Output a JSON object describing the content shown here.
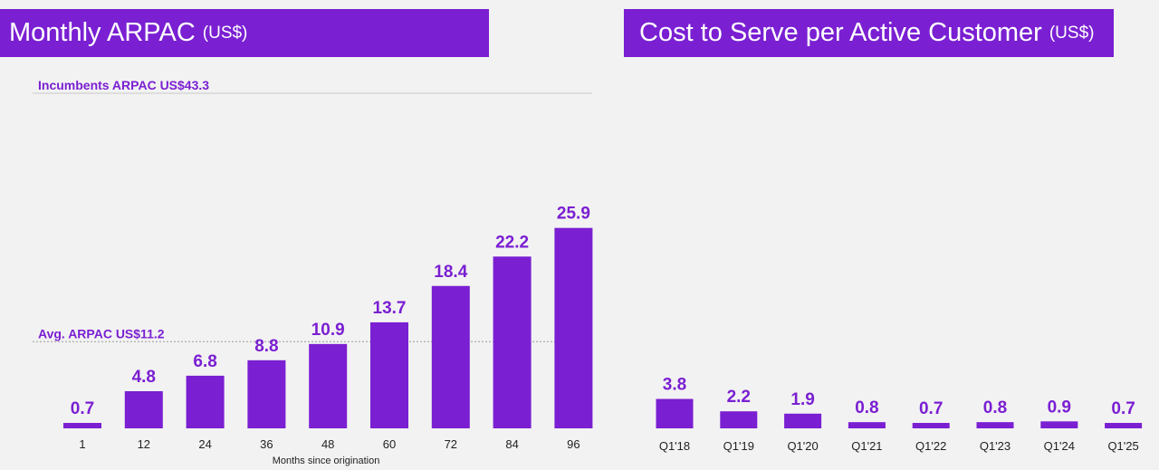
{
  "colors": {
    "accent": "#7a1fd2",
    "background": "#f2f2f2",
    "text": "#222222"
  },
  "chart_data": [
    {
      "type": "bar",
      "title": "Monthly ARPAC",
      "title_unit": "(US$)",
      "xlabel": "Months since origination",
      "ylabel": "",
      "categories": [
        "1",
        "12",
        "24",
        "36",
        "48",
        "60",
        "72",
        "84",
        "96"
      ],
      "values": [
        0.7,
        4.8,
        6.8,
        8.8,
        10.9,
        13.7,
        18.4,
        22.2,
        25.9
      ],
      "value_labels": [
        "0.7",
        "4.8",
        "6.8",
        "8.8",
        "10.9",
        "13.7",
        "18.4",
        "22.2",
        "25.9"
      ],
      "ylim": [
        0,
        43.3
      ],
      "grid": false,
      "reference_lines": [
        {
          "label": "Incumbents ARPAC US$43.3",
          "value": 43.3,
          "style": "solid"
        },
        {
          "label": "Avg. ARPAC US$11.2",
          "value": 11.2,
          "style": "dotted"
        }
      ]
    },
    {
      "type": "bar",
      "title": "Cost to Serve per Active Customer",
      "title_unit": "(US$)",
      "xlabel": "",
      "ylabel": "",
      "categories": [
        "Q1'18",
        "Q1'19",
        "Q1'20",
        "Q1'21",
        "Q1'22",
        "Q1'23",
        "Q1'24",
        "Q1'25"
      ],
      "values": [
        3.8,
        2.2,
        1.9,
        0.8,
        0.7,
        0.8,
        0.9,
        0.7
      ],
      "value_labels": [
        "3.8",
        "2.2",
        "1.9",
        "0.8",
        "0.7",
        "0.8",
        "0.9",
        "0.7"
      ],
      "ylim": [
        0,
        43.3
      ],
      "grid": false
    }
  ]
}
